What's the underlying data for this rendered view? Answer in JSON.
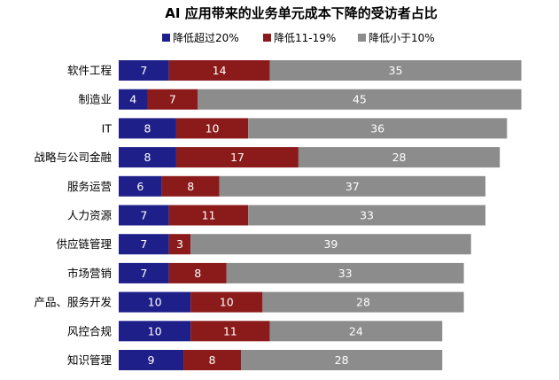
{
  "chart_data": {
    "type": "bar",
    "orientation": "horizontal",
    "stacked": true,
    "title": "AI 应用带来的业务单元成本下降的受访者占比",
    "legend_position": "top",
    "grid": false,
    "xlim": [
      0,
      60
    ],
    "categories": [
      "软件工程",
      "制造业",
      "IT",
      "战略与公司金融",
      "服务运营",
      "人力资源",
      "供应链管理",
      "市场营销",
      "产品、服务开发",
      "风控合规",
      "知识管理"
    ],
    "series": [
      {
        "name": "降低超过20%",
        "color": "#1f1f8a",
        "values": [
          7,
          4,
          8,
          8,
          6,
          7,
          7,
          7,
          10,
          10,
          9
        ]
      },
      {
        "name": "降低11-19%",
        "color": "#8b1a1a",
        "values": [
          14,
          7,
          10,
          17,
          8,
          11,
          3,
          8,
          10,
          11,
          8
        ]
      },
      {
        "name": "降低小于10%",
        "color": "#8c8c8c",
        "values": [
          35,
          45,
          36,
          28,
          37,
          33,
          39,
          33,
          28,
          24,
          28
        ]
      }
    ]
  }
}
